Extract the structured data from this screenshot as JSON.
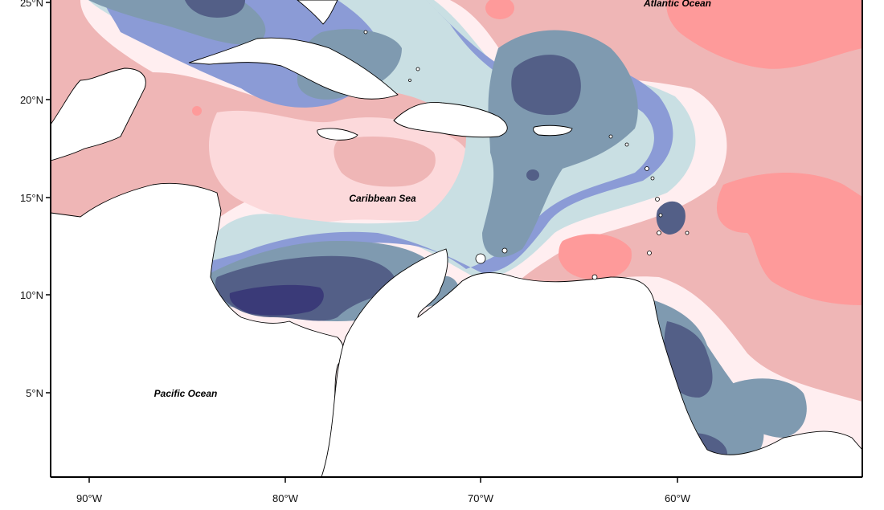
{
  "map": {
    "region": "Caribbean",
    "labels": {
      "atlantic": "Atlantic Ocean",
      "caribbean": "Caribbean Sea",
      "pacific": "Pacific Ocean"
    },
    "lat_ticks": [
      "25°N",
      "20°N",
      "15°N",
      "10°N",
      "5°N"
    ],
    "lon_ticks": [
      "90°W",
      "80°W",
      "70°W",
      "60°W"
    ],
    "palette": {
      "blue_darkest": "#3a3a78",
      "blue_dark": "#535f87",
      "blue_slate": "#7f9ab0",
      "blue_mid": "#8b9bd6",
      "blue_pale": "#c9dfe3",
      "neutral": "#ffeef0",
      "red_pale": "#fcd9db",
      "red_light": "#efb6b6",
      "red_mid": "#fe9a9a",
      "land": "#ffffff",
      "coast": "#000000"
    }
  }
}
